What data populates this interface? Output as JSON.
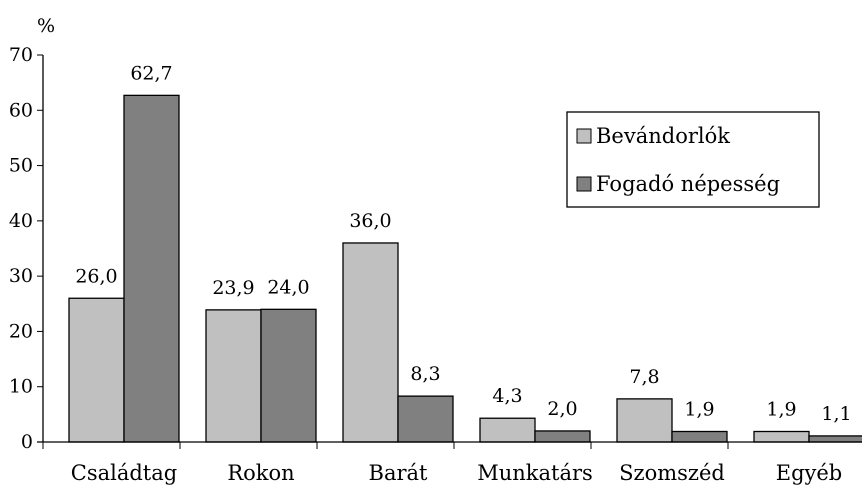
{
  "chart_data": {
    "type": "bar",
    "title": "",
    "xlabel": "",
    "ylabel": "%",
    "ylim": [
      0,
      70
    ],
    "yticks": [
      0,
      10,
      20,
      30,
      40,
      50,
      60,
      70
    ],
    "grid": false,
    "legend_position": "top-right",
    "categories": [
      "Családtag",
      "Rokon",
      "Barát",
      "Munkatárs",
      "Szomszéd",
      "Egyéb"
    ],
    "series": [
      {
        "name": "Bevándorlók",
        "color": "#c0c0c0",
        "values": [
          26.0,
          23.9,
          36.0,
          4.3,
          7.8,
          1.9
        ],
        "labels": [
          "26,0",
          "23,9",
          "36,0",
          "4,3",
          "7,8",
          "1,9"
        ]
      },
      {
        "name": "Fogadó népesség",
        "color": "#808080",
        "values": [
          62.7,
          24.0,
          8.3,
          2.0,
          1.9,
          1.1
        ],
        "labels": [
          "62,7",
          "24,0",
          "8,3",
          "2,0",
          "1,9",
          "1,1"
        ]
      }
    ]
  }
}
